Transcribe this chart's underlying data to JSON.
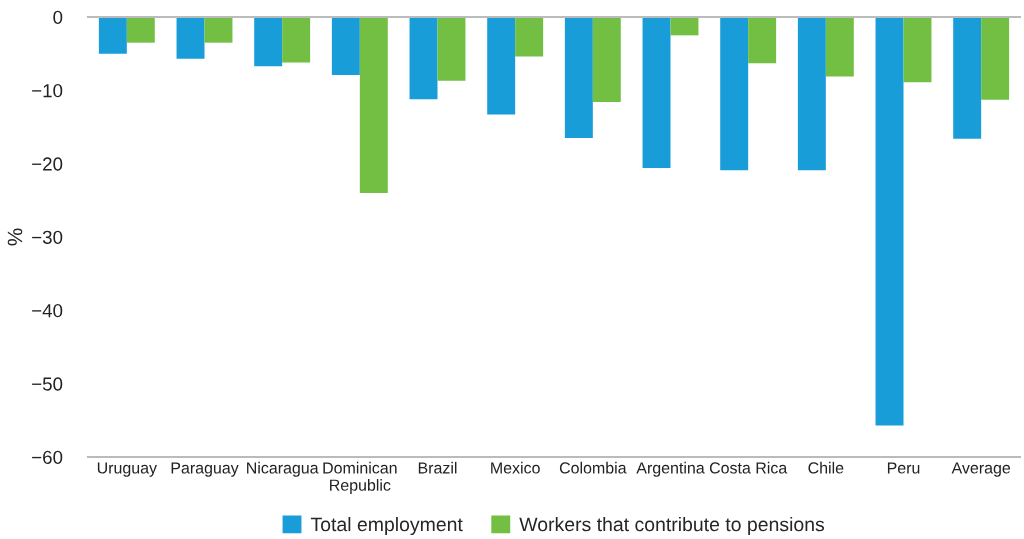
{
  "chart_data": {
    "type": "bar",
    "ylabel": "%",
    "categories": [
      "Uruguay",
      "Paraguay",
      "Nicaragua",
      "Dominican\nRepublic",
      "Brazil",
      "Mexico",
      "Colombia",
      "Argentina",
      "Costa Rica",
      "Chile",
      "Peru",
      "Average"
    ],
    "series": [
      {
        "name": "Total employment",
        "color": "#199dd9",
        "values": [
          -5.0,
          -5.7,
          -6.7,
          -7.9,
          -11.2,
          -13.3,
          -16.5,
          -20.6,
          -20.9,
          -20.9,
          -55.7,
          -16.6
        ]
      },
      {
        "name": "Workers that contribute to pensions",
        "color": "#72bf44",
        "values": [
          -3.5,
          -3.5,
          -6.2,
          -24.0,
          -8.7,
          -5.4,
          -11.6,
          -2.5,
          -6.3,
          -8.1,
          -8.9,
          -11.3
        ]
      }
    ],
    "ylim": [
      -60,
      0
    ],
    "yticks": [
      {
        "value": -60,
        "label": "−60"
      },
      {
        "value": -50,
        "label": "−50"
      },
      {
        "value": -40,
        "label": "−40"
      },
      {
        "value": -30,
        "label": "−30"
      },
      {
        "value": -20,
        "label": "−20"
      },
      {
        "value": -10,
        "label": "−10"
      },
      0
    ],
    "grid": false,
    "legend": "bottom"
  }
}
